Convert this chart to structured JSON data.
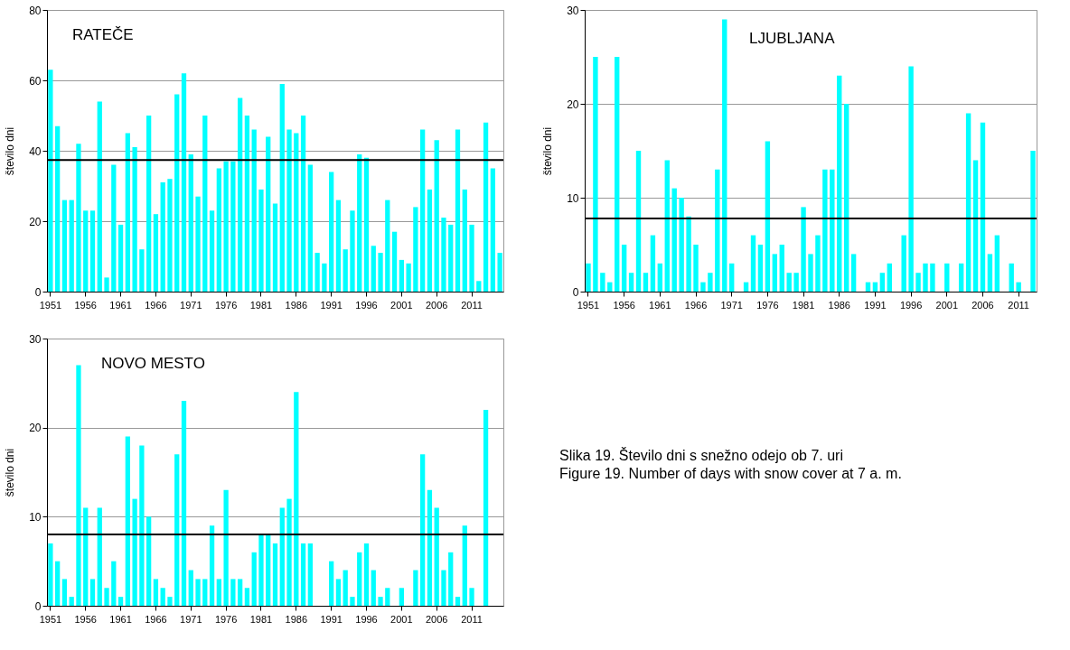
{
  "chart_data": [
    {
      "type": "bar",
      "title": "RATEČE",
      "ylabel": "število dni",
      "color": "#00ffff",
      "ylim": [
        0,
        80
      ],
      "yticks": [
        0,
        20,
        40,
        60,
        80
      ],
      "grid": "y",
      "categories": [
        "1951",
        null,
        null,
        null,
        null,
        "1956",
        null,
        null,
        null,
        null,
        "1961",
        null,
        null,
        null,
        null,
        "1966",
        null,
        null,
        null,
        null,
        "1971",
        null,
        null,
        null,
        null,
        "1976",
        null,
        null,
        null,
        null,
        "1981",
        null,
        null,
        null,
        null,
        "1986",
        null,
        null,
        null,
        null,
        "1991",
        null,
        null,
        null,
        null,
        "1996",
        null,
        null,
        null,
        null,
        "2001",
        null,
        null,
        null,
        null,
        "2006",
        null,
        null,
        null,
        null,
        "2011",
        null,
        null,
        null,
        null
      ],
      "values": [
        63,
        47,
        26,
        26,
        42,
        23,
        23,
        54,
        4,
        36,
        19,
        45,
        41,
        12,
        50,
        22,
        31,
        32,
        56,
        62,
        39,
        27,
        50,
        23,
        35,
        37,
        37,
        55,
        50,
        46,
        29,
        44,
        25,
        59,
        46,
        45,
        50,
        36,
        11,
        8,
        34,
        26,
        12,
        23,
        39,
        38,
        13,
        11,
        26,
        17,
        9,
        8,
        24,
        46,
        29,
        43,
        21,
        19,
        46,
        29,
        19,
        3,
        48,
        35,
        11
      ],
      "ref_lines": [
        {
          "axis": "y",
          "value": 37.4,
          "color": "#000000"
        }
      ]
    },
    {
      "type": "bar",
      "title": "LJUBLJANA",
      "ylabel": "število dni",
      "color": "#00ffff",
      "ylim": [
        0,
        30
      ],
      "yticks": [
        0,
        10,
        20,
        30
      ],
      "grid": "y",
      "categories": [
        "1951",
        null,
        null,
        null,
        null,
        "1956",
        null,
        null,
        null,
        null,
        "1961",
        null,
        null,
        null,
        null,
        "1966",
        null,
        null,
        null,
        null,
        "1971",
        null,
        null,
        null,
        null,
        "1976",
        null,
        null,
        null,
        null,
        "1981",
        null,
        null,
        null,
        null,
        "1986",
        null,
        null,
        null,
        null,
        "1991",
        null,
        null,
        null,
        null,
        "1996",
        null,
        null,
        null,
        null,
        "2001",
        null,
        null,
        null,
        null,
        "2006",
        null,
        null,
        null,
        null,
        "2011",
        null,
        null
      ],
      "values": [
        3,
        25,
        2,
        1,
        25,
        5,
        2,
        15,
        2,
        6,
        3,
        14,
        11,
        10,
        8,
        5,
        1,
        2,
        13,
        29,
        3,
        0,
        1,
        6,
        5,
        16,
        4,
        5,
        2,
        2,
        9,
        4,
        6,
        13,
        13,
        23,
        20,
        4,
        0,
        1,
        1,
        2,
        3,
        0,
        6,
        24,
        2,
        3,
        3,
        0,
        3,
        0,
        3,
        19,
        14,
        18,
        4,
        6,
        0,
        3,
        1,
        0,
        15
      ],
      "ref_lines": [
        {
          "axis": "y",
          "value": 7.8,
          "color": "#000000"
        }
      ]
    },
    {
      "type": "bar",
      "title": "NOVO MESTO",
      "ylabel": "število dni",
      "color": "#00ffff",
      "ylim": [
        0,
        30
      ],
      "yticks": [
        0,
        10,
        20,
        30
      ],
      "grid": "y",
      "categories": [
        "1951",
        null,
        null,
        null,
        null,
        "1956",
        null,
        null,
        null,
        null,
        "1961",
        null,
        null,
        null,
        null,
        "1966",
        null,
        null,
        null,
        null,
        "1971",
        null,
        null,
        null,
        null,
        "1976",
        null,
        null,
        null,
        null,
        "1981",
        null,
        null,
        null,
        null,
        "1986",
        null,
        null,
        null,
        null,
        "1991",
        null,
        null,
        null,
        null,
        "1996",
        null,
        null,
        null,
        null,
        "2001",
        null,
        null,
        null,
        null,
        "2006",
        null,
        null,
        null,
        null,
        "2011",
        null,
        null,
        null,
        null
      ],
      "values": [
        7,
        5,
        3,
        1,
        27,
        11,
        3,
        11,
        2,
        5,
        1,
        19,
        12,
        18,
        10,
        3,
        2,
        1,
        17,
        23,
        4,
        3,
        3,
        9,
        3,
        13,
        3,
        3,
        2,
        6,
        8,
        8,
        7,
        11,
        12,
        24,
        7,
        7,
        0,
        0,
        5,
        3,
        4,
        1,
        6,
        7,
        4,
        1,
        2,
        0,
        2,
        0,
        4,
        17,
        13,
        11,
        4,
        6,
        1,
        9,
        2,
        0,
        22,
        0,
        0
      ],
      "ref_lines": [
        {
          "axis": "y",
          "value": 8.0,
          "color": "#000000"
        }
      ]
    },
    {
      "type": "other",
      "annotations": [
        "Slika 19. Število dni s snežno odejo ob 7. uri",
        "Figure 19. Number of days with snow cover at 7 a. m."
      ]
    }
  ]
}
